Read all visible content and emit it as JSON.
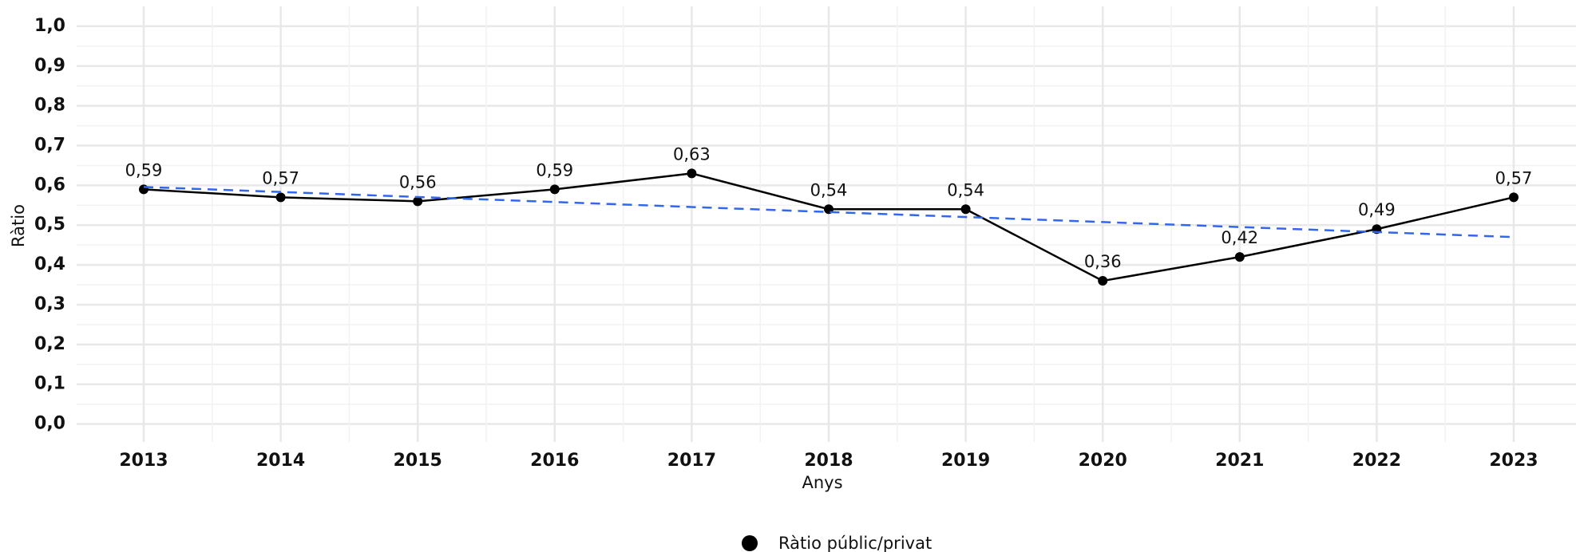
{
  "chart_data": {
    "type": "line",
    "x_label": "Anys",
    "y_label": "Ràtio",
    "categories": [
      "2013",
      "2014",
      "2015",
      "2016",
      "2017",
      "2018",
      "2019",
      "2020",
      "2021",
      "2022",
      "2023"
    ],
    "series": [
      {
        "name": "Ràtio públic/privat",
        "color": "#000000",
        "values": [
          0.59,
          0.57,
          0.56,
          0.59,
          0.63,
          0.54,
          0.54,
          0.36,
          0.42,
          0.49,
          0.57
        ],
        "value_labels": [
          "0,59",
          "0,57",
          "0,56",
          "0,59",
          "0,63",
          "0,54",
          "0,54",
          "0,36",
          "0,42",
          "0,49",
          "0,57"
        ]
      }
    ],
    "trend_line": {
      "color": "#3366ee",
      "values": [
        0.596,
        0.47
      ]
    },
    "ylim": [
      -0.045,
      1.05
    ],
    "yticks": [
      {
        "value": 0,
        "label": "0,0"
      },
      {
        "value": 0.1,
        "label": "0,1"
      },
      {
        "value": 0.2,
        "label": "0,2"
      },
      {
        "value": 0.3,
        "label": "0,3"
      },
      {
        "value": 0.4,
        "label": "0,4"
      },
      {
        "value": 0.5,
        "label": "0,5"
      },
      {
        "value": 0.6,
        "label": "0,6"
      },
      {
        "value": 0.7,
        "label": "0,7"
      },
      {
        "value": 0.8,
        "label": "0,8"
      },
      {
        "value": 0.9,
        "label": "0,9"
      },
      {
        "value": 1.0,
        "label": "1,0"
      }
    ],
    "grid": true,
    "legend": "bottom"
  }
}
